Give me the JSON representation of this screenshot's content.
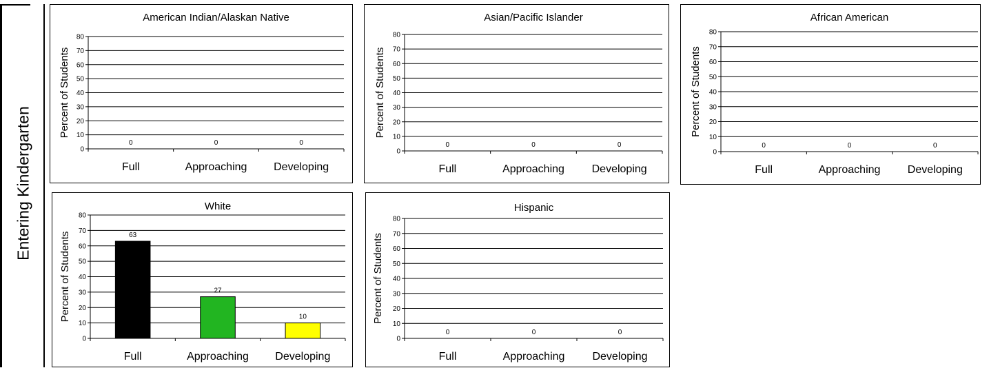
{
  "page": {
    "side_label": "Entering Kindergarten"
  },
  "chart_data": [
    {
      "type": "bar",
      "title": "American Indian/Alaskan Native",
      "ylabel": "Percent of Students",
      "categories": [
        "Full",
        "Approaching",
        "Developing"
      ],
      "values": [
        0,
        0,
        0
      ],
      "ylim": [
        0,
        80
      ],
      "yticks": [
        0,
        10,
        20,
        30,
        40,
        50,
        60,
        70,
        80
      ],
      "grid": true,
      "colors": [
        "#000000",
        "#22b521",
        "#ffff00"
      ]
    },
    {
      "type": "bar",
      "title": "Asian/Pacific Islander",
      "ylabel": "Percent of Students",
      "categories": [
        "Full",
        "Approaching",
        "Developing"
      ],
      "values": [
        0,
        0,
        0
      ],
      "ylim": [
        0,
        80
      ],
      "yticks": [
        0,
        10,
        20,
        30,
        40,
        50,
        60,
        70,
        80
      ],
      "grid": true,
      "colors": [
        "#000000",
        "#22b521",
        "#ffff00"
      ]
    },
    {
      "type": "bar",
      "title": "African American",
      "ylabel": "Percent of Students",
      "categories": [
        "Full",
        "Approaching",
        "Developing"
      ],
      "values": [
        0,
        0,
        0
      ],
      "ylim": [
        0,
        80
      ],
      "yticks": [
        0,
        10,
        20,
        30,
        40,
        50,
        60,
        70,
        80
      ],
      "grid": true,
      "colors": [
        "#000000",
        "#22b521",
        "#ffff00"
      ]
    },
    {
      "type": "bar",
      "title": "White",
      "ylabel": "Percent of Students",
      "categories": [
        "Full",
        "Approaching",
        "Developing"
      ],
      "values": [
        63,
        27,
        10
      ],
      "ylim": [
        0,
        80
      ],
      "yticks": [
        0,
        10,
        20,
        30,
        40,
        50,
        60,
        70,
        80
      ],
      "grid": true,
      "colors": [
        "#000000",
        "#22b521",
        "#ffff00"
      ]
    },
    {
      "type": "bar",
      "title": "Hispanic",
      "ylabel": "Percent of Students",
      "categories": [
        "Full",
        "Approaching",
        "Developing"
      ],
      "values": [
        0,
        0,
        0
      ],
      "ylim": [
        0,
        80
      ],
      "yticks": [
        0,
        10,
        20,
        30,
        40,
        50,
        60,
        70,
        80
      ],
      "grid": true,
      "colors": [
        "#000000",
        "#22b521",
        "#ffff00"
      ]
    }
  ]
}
